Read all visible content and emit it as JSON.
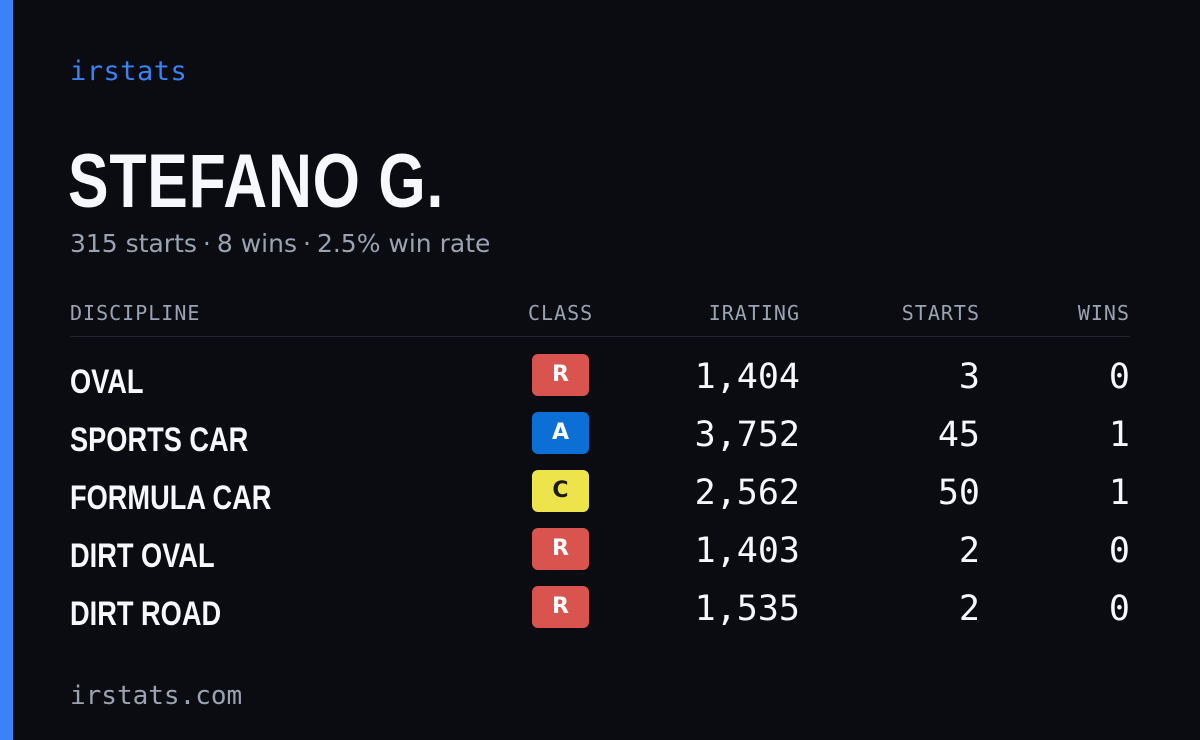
{
  "brand": "irstats",
  "driver": {
    "name": "STEFANO G.",
    "starts_text": "315 starts",
    "wins_text": "8 wins",
    "win_rate_text": "2.5% win rate",
    "separator": "·"
  },
  "table": {
    "headers": {
      "discipline": "DISCIPLINE",
      "class": "CLASS",
      "irating": "IRATING",
      "starts": "STARTS",
      "wins": "WINS"
    },
    "rows": [
      {
        "discipline": "OVAL",
        "class": "R",
        "class_color": "#d9534f",
        "class_text_color": "#ffffff",
        "irating": "1,404",
        "starts": "3",
        "wins": "0"
      },
      {
        "discipline": "SPORTS CAR",
        "class": "A",
        "class_color": "#0b6fd6",
        "class_text_color": "#ffffff",
        "irating": "3,752",
        "starts": "45",
        "wins": "1"
      },
      {
        "discipline": "FORMULA CAR",
        "class": "C",
        "class_color": "#ece44a",
        "class_text_color": "#1a1a1a",
        "irating": "2,562",
        "starts": "50",
        "wins": "1"
      },
      {
        "discipline": "DIRT OVAL",
        "class": "R",
        "class_color": "#d9534f",
        "class_text_color": "#ffffff",
        "irating": "1,403",
        "starts": "2",
        "wins": "0"
      },
      {
        "discipline": "DIRT ROAD",
        "class": "R",
        "class_color": "#d9534f",
        "class_text_color": "#ffffff",
        "irating": "1,535",
        "starts": "2",
        "wins": "0"
      }
    ]
  },
  "footer": "irstats.com",
  "colors": {
    "accent": "#3b82f6",
    "background": "#0a0c12",
    "muted": "#9aa3b2"
  }
}
